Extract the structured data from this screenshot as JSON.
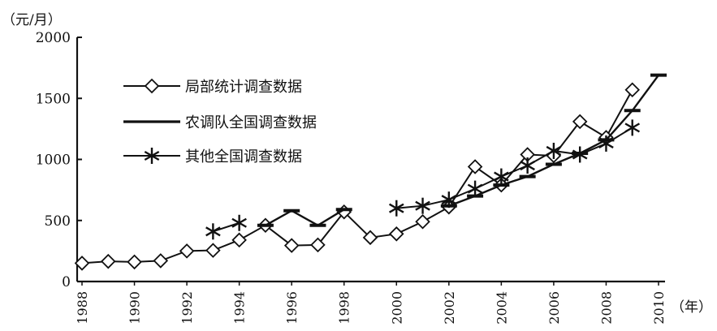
{
  "chart_data": {
    "type": "line",
    "y_unit_label": "（元/月）",
    "x_unit_label": "（年）",
    "ylim": [
      0,
      2000
    ],
    "xlim": [
      1988,
      2010
    ],
    "y_ticks": [
      0,
      500,
      1000,
      1500,
      2000
    ],
    "x_ticks": [
      1988,
      1990,
      1992,
      1994,
      1996,
      1998,
      2000,
      2002,
      2004,
      2006,
      2008,
      2010
    ],
    "grid": false,
    "legend_position": "top-left",
    "series": [
      {
        "name": "局部统计调查数据",
        "marker": "diamond",
        "x": [
          1988,
          1989,
          1990,
          1991,
          1992,
          1993,
          1994,
          1995,
          1996,
          1997,
          1998,
          1999,
          2000,
          2001,
          2002,
          2003,
          2004,
          2005,
          2006,
          2007,
          2008,
          2009
        ],
        "y": [
          150,
          165,
          160,
          170,
          250,
          255,
          340,
          460,
          295,
          300,
          570,
          360,
          390,
          490,
          610,
          940,
          790,
          1040,
          1030,
          1310,
          1180,
          1570
        ]
      },
      {
        "name": "农调队全国调查数据",
        "marker": "dash",
        "x": [
          1995,
          1996,
          1997,
          1998,
          2002,
          2003,
          2004,
          2005,
          2006,
          2007,
          2008,
          2009,
          2010
        ],
        "y": [
          460,
          580,
          460,
          590,
          620,
          700,
          790,
          860,
          960,
          1050,
          1160,
          1400,
          1690
        ]
      },
      {
        "name": "其他全国调查数据",
        "marker": "star",
        "x": [
          1993,
          1994,
          2000,
          2001,
          2002,
          2003,
          2004,
          2005,
          2006,
          2007,
          2008,
          2009
        ],
        "y": [
          410,
          480,
          600,
          620,
          670,
          760,
          860,
          950,
          1070,
          1040,
          1130,
          1260
        ]
      }
    ]
  }
}
